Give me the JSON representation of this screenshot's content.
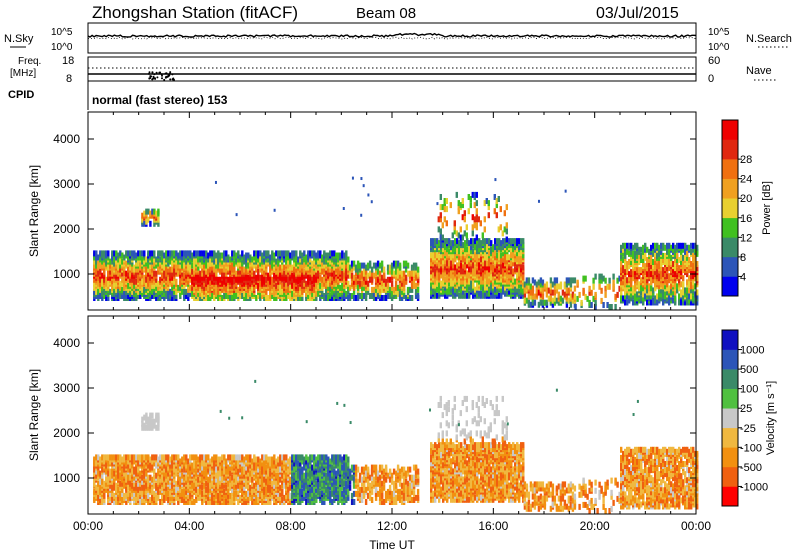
{
  "header": {
    "title": "Zhongshan Station (fitACF)",
    "beam": "Beam 08",
    "date": "03/Jul/2015"
  },
  "strips": {
    "nsky_label": "N.Sky",
    "nsky_ticks": [
      "10^5",
      "10^0"
    ],
    "nsearch_label": "N.Search",
    "nsearch_ticks": [
      "10^5",
      "10^0"
    ],
    "freq_label_1": "Freq.",
    "freq_label_2": "[MHz]",
    "freq_ticks": [
      "18",
      "8"
    ],
    "nave_label": "Nave",
    "nave_ticks": [
      "60",
      "0"
    ],
    "cpid_label": "CPID",
    "cpid_text": "normal (fast stereo) 153"
  },
  "colors": {
    "power": [
      "#0000ee",
      "#2c55b8",
      "#3a8a68",
      "#40c020",
      "#e8d030",
      "#f0a020",
      "#f07010",
      "#e02810",
      "#ee0000"
    ],
    "velocity": [
      "#ff0000",
      "#f06010",
      "#f29010",
      "#f0b840",
      "#c8c8c8",
      "#50c040",
      "#3a8a68",
      "#2c55b8",
      "#1010c0"
    ]
  },
  "chart_data": [
    {
      "type": "heatmap",
      "panel": "power",
      "ylabel": "Slant Range [km]",
      "xlabel": "",
      "yticks": [
        1000,
        2000,
        3000,
        4000
      ],
      "ylim": [
        200,
        4600
      ],
      "xlim": [
        0,
        24
      ],
      "colorbar": {
        "label": "Power [dB]",
        "ticks": [
          "4",
          "8",
          "12",
          "16",
          "20",
          "24",
          "28"
        ],
        "range": [
          0,
          30
        ]
      },
      "regions": [
        {
          "t0": 0.2,
          "t1": 10.3,
          "r0": 400,
          "r1": 1400,
          "density": 0.7
        },
        {
          "t0": 2.1,
          "t1": 2.8,
          "r0": 2050,
          "r1": 2350,
          "density": 0.6
        },
        {
          "t0": 10.3,
          "t1": 13.0,
          "r0": 400,
          "r1": 1200,
          "density": 0.45
        },
        {
          "t0": 13.5,
          "t1": 17.2,
          "r0": 450,
          "r1": 1700,
          "density": 0.75
        },
        {
          "t0": 13.8,
          "t1": 16.5,
          "r0": 1700,
          "r1": 2700,
          "density": 0.12
        },
        {
          "t0": 17.2,
          "t1": 19.2,
          "r0": 250,
          "r1": 800,
          "density": 0.4
        },
        {
          "t0": 19.2,
          "t1": 21.0,
          "r0": 200,
          "r1": 900,
          "density": 0.15
        },
        {
          "t0": 21.0,
          "t1": 24.0,
          "r0": 300,
          "r1": 1600,
          "density": 0.6
        }
      ]
    },
    {
      "type": "heatmap",
      "panel": "velocity",
      "ylabel": "Slant Range [km]",
      "xlabel": "Time UT",
      "xticks": [
        "00:00",
        "04:00",
        "08:00",
        "12:00",
        "16:00",
        "20:00",
        "00:00"
      ],
      "yticks": [
        1000,
        2000,
        3000,
        4000
      ],
      "ylim": [
        200,
        4600
      ],
      "xlim": [
        0,
        24
      ],
      "colorbar": {
        "label": "Velocity [m s⁻¹]",
        "ticks": [
          "-1000",
          "-500",
          "-100",
          "-25",
          "25",
          "100",
          "500",
          "1000"
        ],
        "range": [
          -1500,
          1500
        ]
      },
      "regions": [
        {
          "t0": 0.2,
          "t1": 10.3,
          "r0": 400,
          "r1": 1400,
          "density": 0.7
        },
        {
          "t0": 2.1,
          "t1": 2.8,
          "r0": 2050,
          "r1": 2350,
          "density": 0.6
        },
        {
          "t0": 10.3,
          "t1": 13.0,
          "r0": 400,
          "r1": 1200,
          "density": 0.45
        },
        {
          "t0": 13.5,
          "t1": 17.2,
          "r0": 450,
          "r1": 1700,
          "density": 0.75
        },
        {
          "t0": 13.8,
          "t1": 16.5,
          "r0": 1700,
          "r1": 2700,
          "density": 0.12
        },
        {
          "t0": 17.2,
          "t1": 19.2,
          "r0": 250,
          "r1": 800,
          "density": 0.4
        },
        {
          "t0": 19.2,
          "t1": 21.0,
          "r0": 200,
          "r1": 900,
          "density": 0.15
        },
        {
          "t0": 21.0,
          "t1": 24.0,
          "r0": 300,
          "r1": 1600,
          "density": 0.6
        }
      ]
    }
  ]
}
